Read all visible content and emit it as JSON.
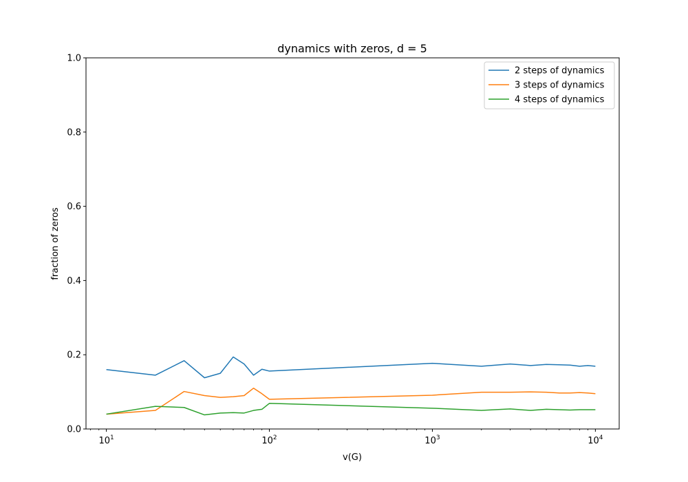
{
  "chart_data": {
    "type": "line",
    "title": "dynamics with zeros, d = 5",
    "xlabel": "v(G)",
    "ylabel": "fraction of zeros",
    "xscale": "log",
    "xlim": [
      7.5,
      14000
    ],
    "ylim": [
      0,
      1.0
    ],
    "yticks": [
      0.0,
      0.2,
      0.4,
      0.6,
      0.8,
      1.0
    ],
    "ytick_labels": [
      "0.0",
      "0.2",
      "0.4",
      "0.6",
      "0.8",
      "1.0"
    ],
    "xticks": [
      10,
      100,
      1000,
      10000
    ],
    "xtick_labels": [
      {
        "base": "10",
        "exp": "1"
      },
      {
        "base": "10",
        "exp": "2"
      },
      {
        "base": "10",
        "exp": "3"
      },
      {
        "base": "10",
        "exp": "4"
      }
    ],
    "legend_position": "top-right",
    "grid": false,
    "x": [
      10,
      20,
      30,
      40,
      50,
      60,
      70,
      80,
      90,
      100,
      1000,
      2000,
      3000,
      4000,
      5000,
      6000,
      7000,
      8000,
      9000,
      10000
    ],
    "series": [
      {
        "name": "2 steps of dynamics",
        "color": "#1f77b4",
        "values": [
          0.16,
          0.145,
          0.184,
          0.138,
          0.15,
          0.194,
          0.175,
          0.145,
          0.161,
          0.156,
          0.177,
          0.169,
          0.175,
          0.171,
          0.174,
          0.173,
          0.172,
          0.169,
          0.171,
          0.169
        ]
      },
      {
        "name": "3 steps of dynamics",
        "color": "#ff7f0e",
        "values": [
          0.04,
          0.05,
          0.101,
          0.09,
          0.085,
          0.087,
          0.09,
          0.11,
          0.095,
          0.08,
          0.091,
          0.099,
          0.099,
          0.1,
          0.099,
          0.097,
          0.097,
          0.098,
          0.097,
          0.095
        ]
      },
      {
        "name": "4 steps of dynamics",
        "color": "#2ca02c",
        "values": [
          0.04,
          0.061,
          0.058,
          0.038,
          0.043,
          0.044,
          0.043,
          0.05,
          0.053,
          0.069,
          0.056,
          0.05,
          0.054,
          0.05,
          0.053,
          0.052,
          0.051,
          0.052,
          0.052,
          0.052
        ]
      }
    ]
  }
}
